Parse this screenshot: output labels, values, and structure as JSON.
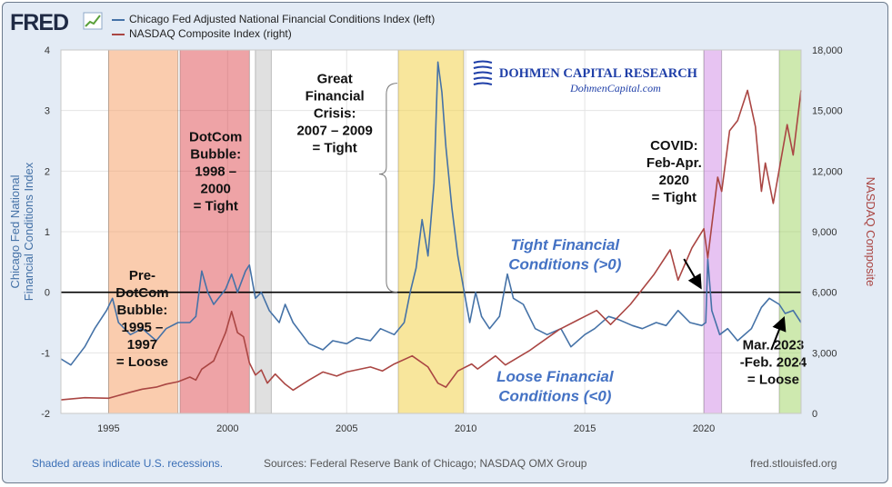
{
  "header": {
    "logo_text": "FRED",
    "legend": [
      {
        "label": "Chicago Fed Adjusted National Financial Conditions Index (left)",
        "color": "#4572a7"
      },
      {
        "label": "NASDAQ Composite Index (right)",
        "color": "#aa4643"
      }
    ]
  },
  "footer": {
    "note": "Shaded areas indicate U.S. recessions.",
    "sources": "Sources: Federal Reserve Bank of Chicago; NASDAQ OMX Group",
    "site": "fred.stlouisfed.org"
  },
  "chart_data": {
    "type": "line",
    "x_range": [
      "1993-01",
      "2024-02"
    ],
    "x_ticks": [
      "1995",
      "2000",
      "2005",
      "2010",
      "2015",
      "2020"
    ],
    "y_left": {
      "label": "Chicago Fed National Financial Conditions Index",
      "range": [
        -2,
        4
      ],
      "ticks": [
        "-2",
        "-1",
        "0",
        "1",
        "2",
        "3",
        "4"
      ],
      "color": "#4572a7"
    },
    "y_right": {
      "label": "NASDAQ Composite",
      "range": [
        0,
        18000
      ],
      "ticks": [
        "0",
        "3,000",
        "6,000",
        "9,000",
        "12,000",
        "15,000",
        "18,000"
      ],
      "color": "#aa4643"
    },
    "grid": true,
    "zero_line": true,
    "series": [
      {
        "name": "Chicago Fed Adjusted National Financial Conditions Index (left)",
        "axis": "left",
        "color": "#4572a7",
        "points": [
          [
            "1993-01",
            -1.1
          ],
          [
            "1993-06",
            -1.2
          ],
          [
            "1994-01",
            -0.9
          ],
          [
            "1994-06",
            -0.6
          ],
          [
            "1994-12",
            -0.3
          ],
          [
            "1995-03",
            -0.1
          ],
          [
            "1995-06",
            -0.5
          ],
          [
            "1995-12",
            -0.7
          ],
          [
            "1996-06",
            -0.6
          ],
          [
            "1997-01",
            -0.8
          ],
          [
            "1997-06",
            -0.6
          ],
          [
            "1997-12",
            -0.5
          ],
          [
            "1998-06",
            -0.5
          ],
          [
            "1998-09",
            -0.4
          ],
          [
            "1998-12",
            0.35
          ],
          [
            "1999-03",
            0.0
          ],
          [
            "1999-06",
            -0.2
          ],
          [
            "1999-12",
            0.05
          ],
          [
            "2000-03",
            0.3
          ],
          [
            "2000-06",
            0.0
          ],
          [
            "2000-10",
            0.35
          ],
          [
            "2000-12",
            0.45
          ],
          [
            "2001-03",
            -0.1
          ],
          [
            "2001-06",
            0.0
          ],
          [
            "2001-10",
            -0.3
          ],
          [
            "2002-03",
            -0.5
          ],
          [
            "2002-06",
            -0.2
          ],
          [
            "2002-10",
            -0.5
          ],
          [
            "2003-06",
            -0.85
          ],
          [
            "2004-01",
            -0.95
          ],
          [
            "2004-06",
            -0.8
          ],
          [
            "2005-01",
            -0.85
          ],
          [
            "2005-06",
            -0.75
          ],
          [
            "2006-01",
            -0.8
          ],
          [
            "2006-06",
            -0.6
          ],
          [
            "2007-01",
            -0.7
          ],
          [
            "2007-06",
            -0.5
          ],
          [
            "2007-09",
            0.0
          ],
          [
            "2007-12",
            0.4
          ],
          [
            "2008-03",
            1.2
          ],
          [
            "2008-06",
            0.6
          ],
          [
            "2008-09",
            1.8
          ],
          [
            "2008-11",
            3.8
          ],
          [
            "2009-01",
            3.3
          ],
          [
            "2009-03",
            2.4
          ],
          [
            "2009-06",
            1.4
          ],
          [
            "2009-09",
            0.6
          ],
          [
            "2009-12",
            0.05
          ],
          [
            "2010-03",
            -0.5
          ],
          [
            "2010-06",
            0.0
          ],
          [
            "2010-09",
            -0.4
          ],
          [
            "2011-01",
            -0.6
          ],
          [
            "2011-06",
            -0.4
          ],
          [
            "2011-10",
            0.3
          ],
          [
            "2012-01",
            -0.1
          ],
          [
            "2012-06",
            -0.2
          ],
          [
            "2012-12",
            -0.6
          ],
          [
            "2013-06",
            -0.7
          ],
          [
            "2014-01",
            -0.6
          ],
          [
            "2014-06",
            -0.9
          ],
          [
            "2015-01",
            -0.7
          ],
          [
            "2015-06",
            -0.6
          ],
          [
            "2016-01",
            -0.4
          ],
          [
            "2016-06",
            -0.45
          ],
          [
            "2017-01",
            -0.55
          ],
          [
            "2017-06",
            -0.6
          ],
          [
            "2018-01",
            -0.5
          ],
          [
            "2018-06",
            -0.55
          ],
          [
            "2018-12",
            -0.3
          ],
          [
            "2019-06",
            -0.5
          ],
          [
            "2019-12",
            -0.55
          ],
          [
            "2020-02",
            -0.5
          ],
          [
            "2020-03",
            0.55
          ],
          [
            "2020-05",
            -0.3
          ],
          [
            "2020-09",
            -0.7
          ],
          [
            "2021-01",
            -0.6
          ],
          [
            "2021-06",
            -0.8
          ],
          [
            "2022-01",
            -0.6
          ],
          [
            "2022-06",
            -0.25
          ],
          [
            "2022-10",
            -0.1
          ],
          [
            "2023-03",
            -0.2
          ],
          [
            "2023-06",
            -0.35
          ],
          [
            "2023-10",
            -0.3
          ],
          [
            "2024-02",
            -0.5
          ]
        ]
      },
      {
        "name": "NASDAQ Composite Index (right)",
        "axis": "right",
        "color": "#aa4643",
        "points": [
          [
            "1993-01",
            670
          ],
          [
            "1994-01",
            780
          ],
          [
            "1995-01",
            750
          ],
          [
            "1995-12",
            1050
          ],
          [
            "1996-06",
            1200
          ],
          [
            "1997-01",
            1300
          ],
          [
            "1997-06",
            1450
          ],
          [
            "1997-12",
            1570
          ],
          [
            "1998-06",
            1800
          ],
          [
            "1998-09",
            1650
          ],
          [
            "1998-12",
            2190
          ],
          [
            "1999-06",
            2600
          ],
          [
            "1999-12",
            4000
          ],
          [
            "2000-03",
            5050
          ],
          [
            "2000-06",
            4000
          ],
          [
            "2000-09",
            3800
          ],
          [
            "2000-12",
            2500
          ],
          [
            "2001-03",
            1900
          ],
          [
            "2001-06",
            2150
          ],
          [
            "2001-09",
            1500
          ],
          [
            "2002-01",
            1950
          ],
          [
            "2002-06",
            1450
          ],
          [
            "2002-10",
            1150
          ],
          [
            "2003-06",
            1650
          ],
          [
            "2004-01",
            2050
          ],
          [
            "2004-08",
            1850
          ],
          [
            "2005-01",
            2050
          ],
          [
            "2006-01",
            2300
          ],
          [
            "2006-07",
            2100
          ],
          [
            "2007-01",
            2450
          ],
          [
            "2007-10",
            2850
          ],
          [
            "2008-06",
            2300
          ],
          [
            "2008-11",
            1500
          ],
          [
            "2009-03",
            1300
          ],
          [
            "2009-09",
            2100
          ],
          [
            "2010-04",
            2450
          ],
          [
            "2010-07",
            2200
          ],
          [
            "2011-04",
            2850
          ],
          [
            "2011-09",
            2400
          ],
          [
            "2012-09",
            3100
          ],
          [
            "2013-12",
            4150
          ],
          [
            "2014-12",
            4750
          ],
          [
            "2015-07",
            5100
          ],
          [
            "2016-02",
            4400
          ],
          [
            "2016-12",
            5400
          ],
          [
            "2017-12",
            6900
          ],
          [
            "2018-08",
            8100
          ],
          [
            "2018-12",
            6600
          ],
          [
            "2019-07",
            8200
          ],
          [
            "2020-01",
            9150
          ],
          [
            "2020-03",
            7700
          ],
          [
            "2020-08",
            11700
          ],
          [
            "2020-10",
            11000
          ],
          [
            "2021-02",
            14000
          ],
          [
            "2021-06",
            14500
          ],
          [
            "2021-11",
            16000
          ],
          [
            "2022-03",
            14200
          ],
          [
            "2022-06",
            11000
          ],
          [
            "2022-08",
            12400
          ],
          [
            "2022-12",
            10400
          ],
          [
            "2023-07",
            14300
          ],
          [
            "2023-10",
            12800
          ],
          [
            "2024-02",
            16000
          ]
        ]
      }
    ],
    "shaded_periods": [
      {
        "from": "1995-01",
        "to": "1997-12",
        "color": "#f5a36b",
        "opacity": 0.55
      },
      {
        "from": "1998-01",
        "to": "2000-12",
        "color": "#d9333a",
        "opacity": 0.45
      },
      {
        "from": "2001-03",
        "to": "2001-11",
        "color": "#bbbbbb",
        "opacity": 0.45
      },
      {
        "from": "2007-03",
        "to": "2009-12",
        "color": "#f2d24a",
        "opacity": 0.55
      },
      {
        "from": "2020-01",
        "to": "2020-10",
        "color": "#c97be3",
        "opacity": 0.45
      },
      {
        "from": "2023-03",
        "to": "2024-02",
        "color": "#9ed45f",
        "opacity": 0.5
      }
    ],
    "annotations": [
      {
        "lines": [
          "Pre-",
          "DotCom",
          "Bubble:",
          "1995 –",
          "1997",
          "= Loose"
        ],
        "at": [
          "1996-06",
          -0.43
        ],
        "weight": "bold",
        "color": "#111111",
        "size": 15,
        "italic": false
      },
      {
        "lines": [
          "DotCom",
          "Bubble:",
          "1998 –",
          "2000",
          "= Tight"
        ],
        "at": [
          "1999-07",
          2.0
        ],
        "weight": "bold",
        "color": "#111111",
        "size": 15,
        "italic": false
      },
      {
        "lines": [
          "Great",
          "Financial",
          "Crisis:",
          "2007 – 2009",
          "= Tight"
        ],
        "at": [
          "2004-07",
          2.96
        ],
        "weight": "bold",
        "color": "#111111",
        "size": 15,
        "italic": false
      },
      {
        "lines": [
          "COVID:",
          "Feb-Apr.",
          "2020",
          "= Tight"
        ],
        "at": [
          "2018-10",
          2.0
        ],
        "weight": "bold",
        "color": "#111111",
        "size": 15,
        "italic": false
      },
      {
        "lines": [
          "Mar. 2023",
          "-Feb. 2024",
          "= Loose"
        ],
        "at": [
          "2022-12",
          -1.15
        ],
        "weight": "bold",
        "color": "#111111",
        "size": 15,
        "italic": false
      },
      {
        "lines": [
          "Tight Financial",
          "Conditions (>0)"
        ],
        "at": [
          "2014-03",
          0.63
        ],
        "weight": "bold",
        "color": "#4472c4",
        "size": 17,
        "italic": true
      },
      {
        "lines": [
          "Loose Financial",
          "Conditions (<0)"
        ],
        "at": [
          "2013-10",
          -1.55
        ],
        "weight": "bold",
        "color": "#4472c4",
        "size": 17,
        "italic": true
      }
    ],
    "watermark": {
      "title": "DOHMEN CAPITAL RESEARCH",
      "subtitle": "DohmenCapital.com"
    }
  }
}
